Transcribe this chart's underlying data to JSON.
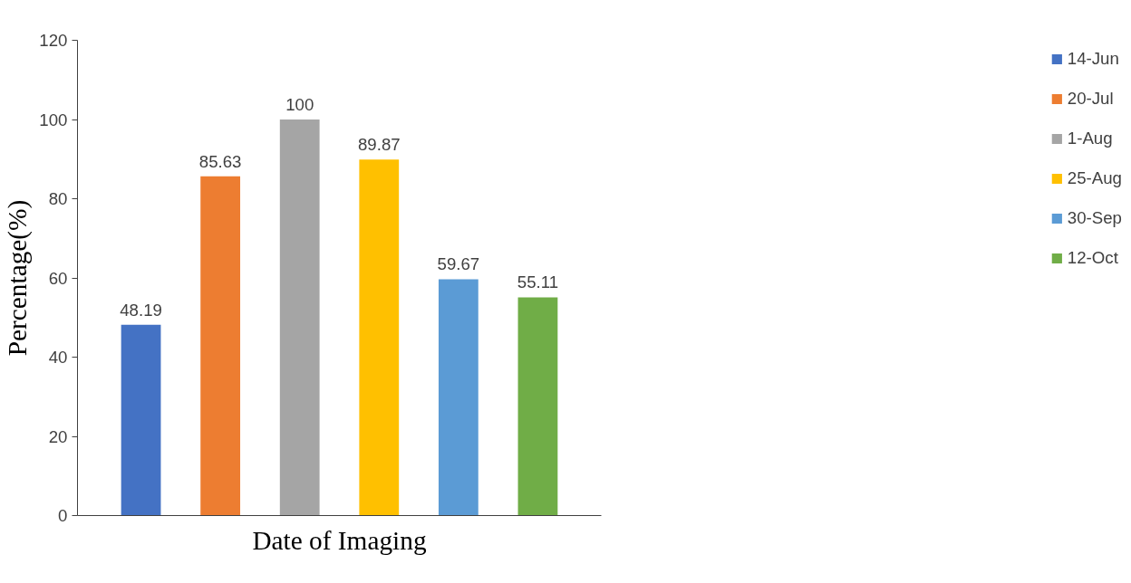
{
  "chart_data": {
    "type": "bar",
    "xlabel": "Date of Imaging",
    "ylabel": "Percentage(%)",
    "categories": [
      null,
      null,
      null,
      null,
      null,
      null
    ],
    "series": [
      {
        "name": "14-Jun",
        "color": "#4472c4",
        "values": [
          48.19,
          null,
          null,
          null,
          null,
          null
        ]
      },
      {
        "name": "20-Jul",
        "color": "#ed7d31",
        "values": [
          null,
          85.63,
          null,
          null,
          null,
          null
        ]
      },
      {
        "name": "1-Aug",
        "color": "#a5a5a5",
        "values": [
          null,
          null,
          100,
          null,
          null,
          null
        ]
      },
      {
        "name": "25-Aug",
        "color": "#ffc000",
        "values": [
          null,
          null,
          null,
          89.87,
          null,
          null
        ]
      },
      {
        "name": "30-Sep",
        "color": "#5b9bd5",
        "values": [
          null,
          null,
          null,
          null,
          59.67,
          null
        ]
      },
      {
        "name": "12-Oct",
        "color": "#70ad47",
        "values": [
          null,
          null,
          null,
          null,
          null,
          55.11
        ]
      }
    ],
    "ylim": [
      0,
      120
    ],
    "yticks": [
      0,
      20,
      40,
      60,
      80,
      100,
      120
    ],
    "data_labels": true,
    "grid": false,
    "legend": "right",
    "tick_labels": "y"
  }
}
